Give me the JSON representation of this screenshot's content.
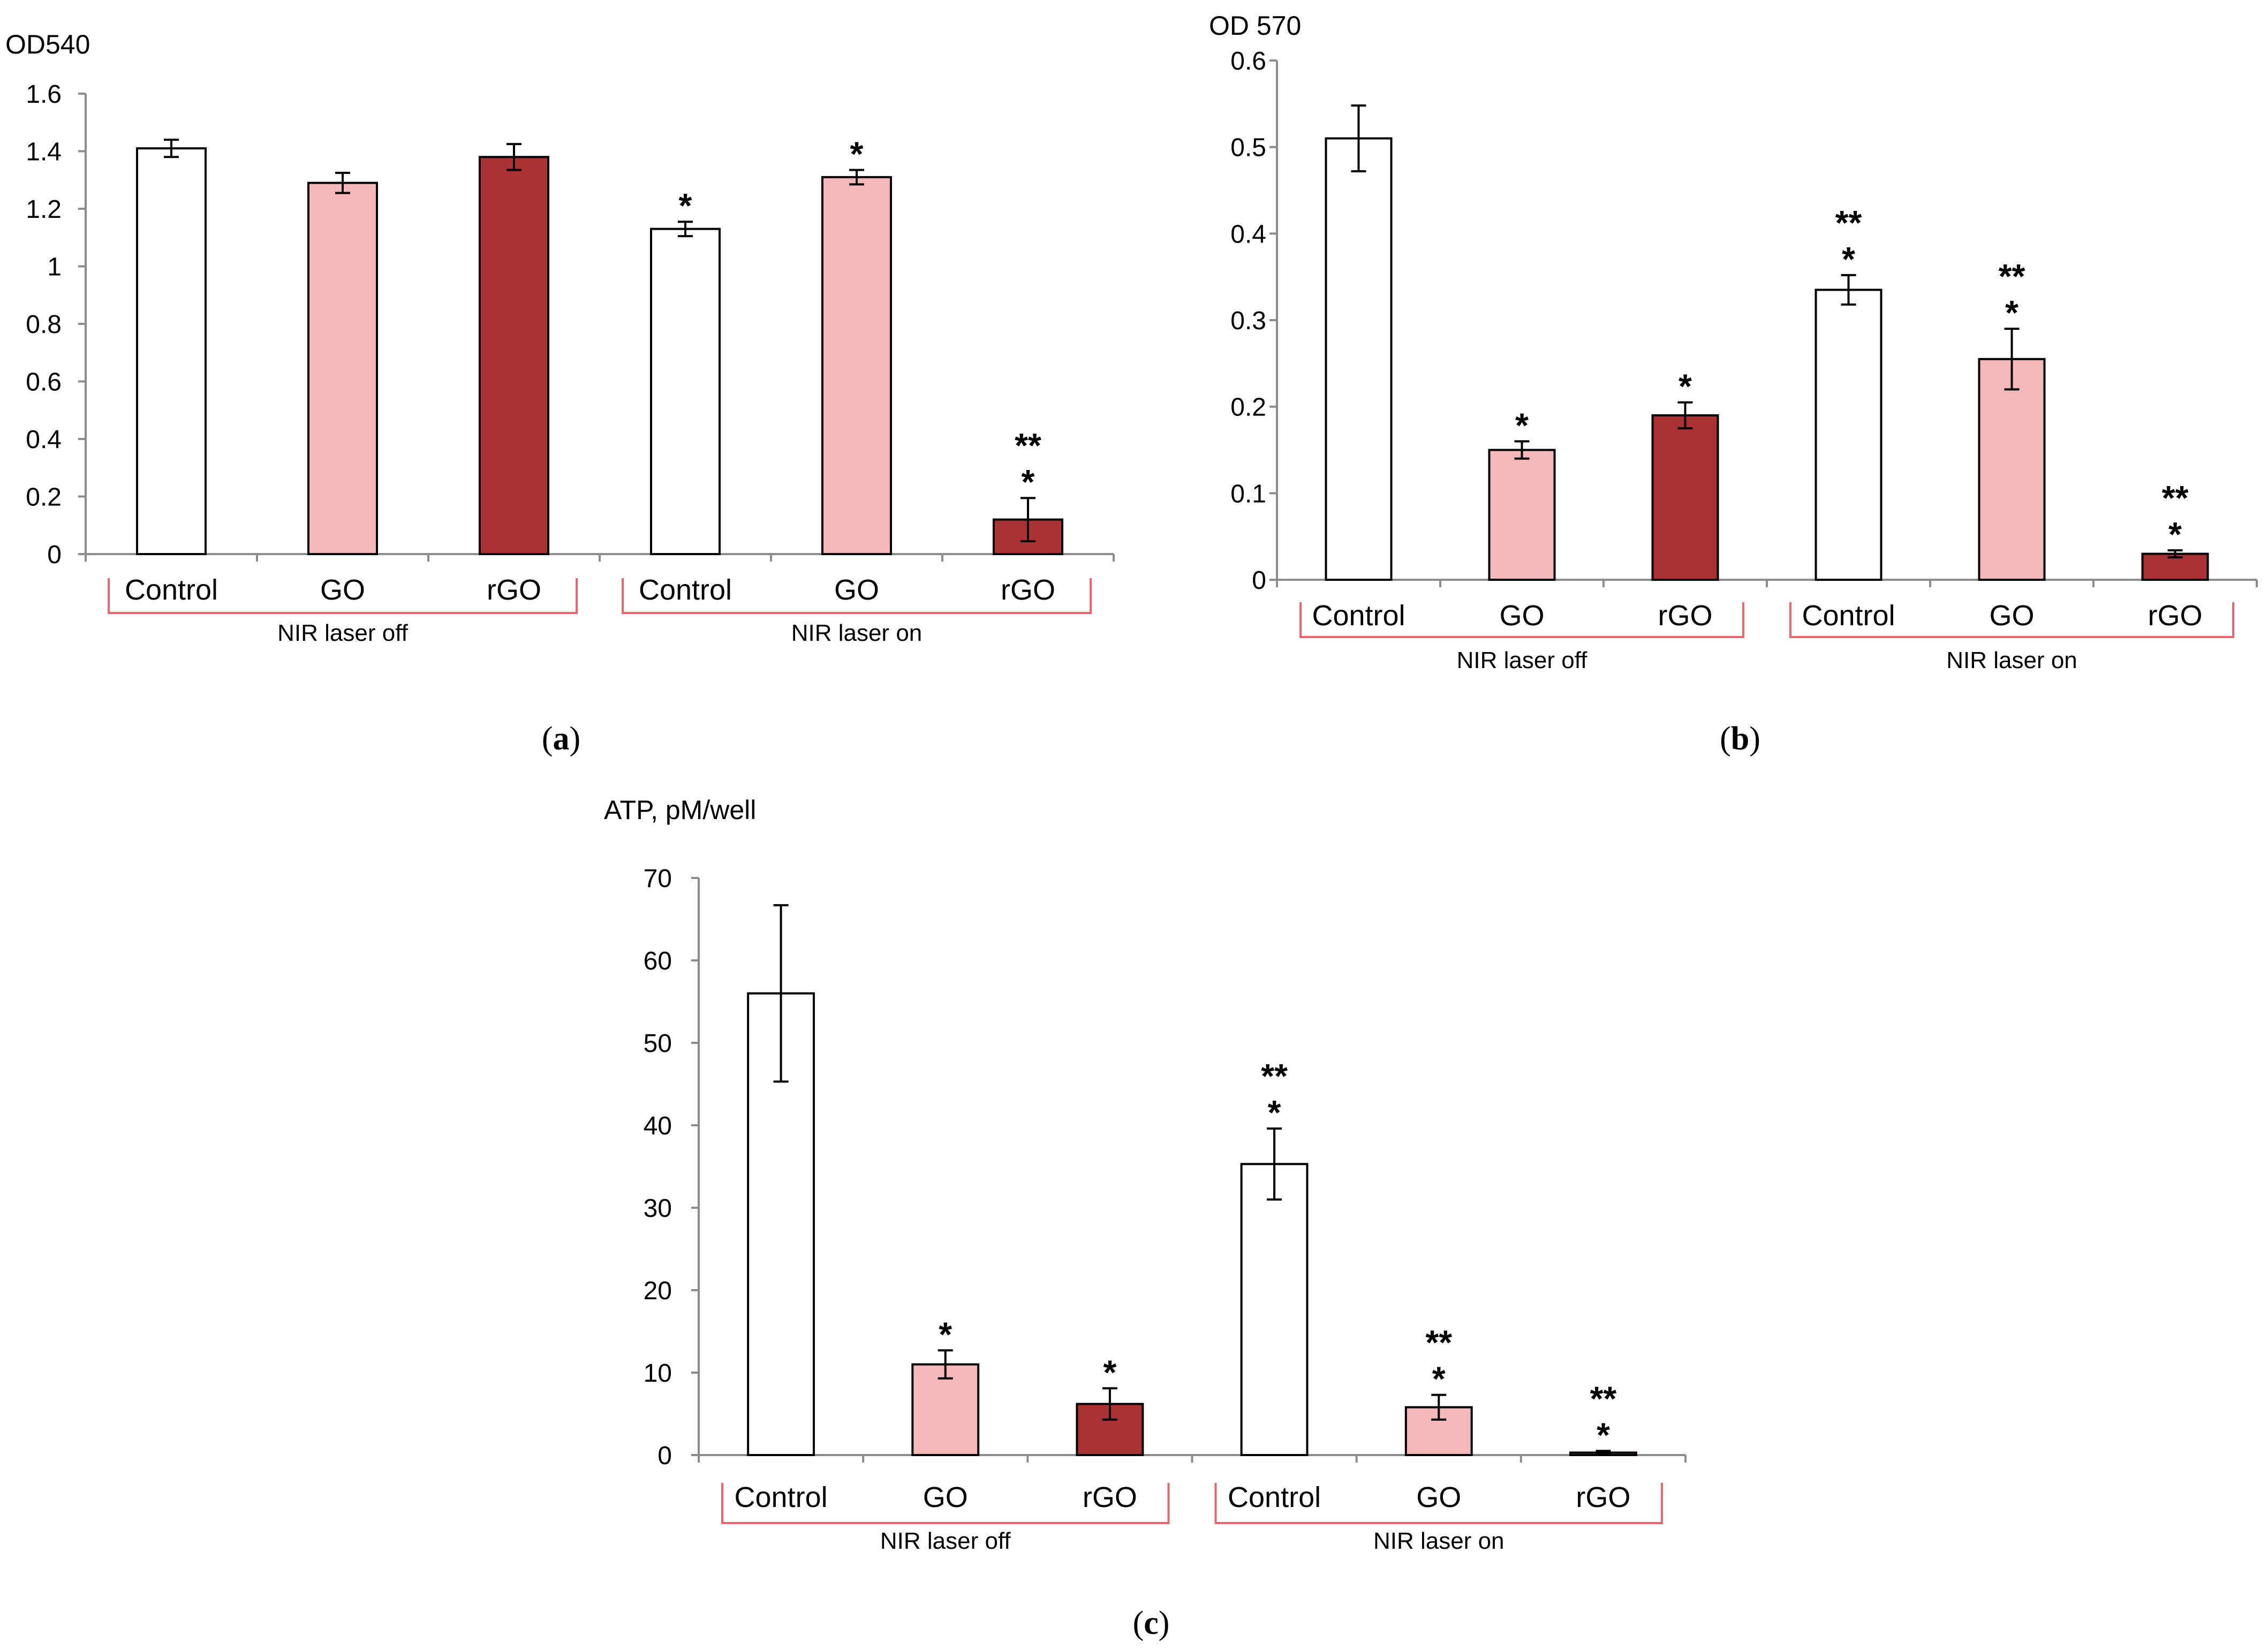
{
  "chart_data": [
    {
      "panel": "a",
      "type": "bar",
      "ylabel": "OD540",
      "ylim": [
        0,
        1.6
      ],
      "yticks": [
        "0",
        "0.2",
        "0.4",
        "0.6",
        "0.8",
        "1",
        "1.2",
        "1.4",
        "1.6"
      ],
      "categories": [
        "Control",
        "GO",
        "rGO",
        "Control",
        "GO",
        "rGO"
      ],
      "groups": [
        "NIR laser off",
        "NIR laser on"
      ],
      "values": [
        1.41,
        1.29,
        1.38,
        1.13,
        1.31,
        0.12
      ],
      "errors": [
        0.03,
        0.035,
        0.045,
        0.025,
        0.025,
        0.075
      ],
      "significance": [
        "",
        "",
        "",
        "*",
        "*",
        "**\n*"
      ],
      "colors": [
        "#ffffff",
        "#f4b8b8",
        "#ab3232",
        "#ffffff",
        "#f4b8b8",
        "#ab3232"
      ]
    },
    {
      "panel": "b",
      "type": "bar",
      "ylabel": "OD 570",
      "ylim": [
        0,
        0.6
      ],
      "yticks": [
        "0",
        "0.1",
        "0.2",
        "0.3",
        "0.4",
        "0.5",
        "0.6"
      ],
      "categories": [
        "Control",
        "GO",
        "rGO",
        "Control",
        "GO",
        "rGO"
      ],
      "groups": [
        "NIR laser off",
        "NIR laser on"
      ],
      "values": [
        0.51,
        0.15,
        0.19,
        0.335,
        0.255,
        0.03
      ],
      "errors": [
        0.038,
        0.01,
        0.015,
        0.017,
        0.035,
        0.004
      ],
      "significance": [
        "",
        "*",
        "*",
        "**\n*",
        "**\n*",
        "**\n*"
      ],
      "colors": [
        "#ffffff",
        "#f4b8b8",
        "#ab3232",
        "#ffffff",
        "#f4b8b8",
        "#ab3232"
      ]
    },
    {
      "panel": "c",
      "type": "bar",
      "ylabel": "ATP, pM/well",
      "ylim": [
        0,
        70
      ],
      "yticks": [
        "0",
        "10",
        "20",
        "30",
        "40",
        "50",
        "60",
        "70"
      ],
      "categories": [
        "Control",
        "GO",
        "rGO",
        "Control",
        "GO",
        "rGO"
      ],
      "groups": [
        "NIR laser off",
        "NIR laser on"
      ],
      "values": [
        56,
        11,
        6.2,
        35.3,
        5.8,
        0.3
      ],
      "errors": [
        10.7,
        1.7,
        1.9,
        4.3,
        1.5,
        0.2
      ],
      "significance": [
        "",
        "*",
        "*",
        "**\n*",
        "**\n*",
        "**\n*"
      ],
      "colors": [
        "#ffffff",
        "#f4b8b8",
        "#ab3232",
        "#ffffff",
        "#f4b8b8",
        "#ab3232"
      ]
    }
  ],
  "panel_labels": [
    {
      "open": "(",
      "letter": "a",
      "close": ")"
    },
    {
      "open": "(",
      "letter": "b",
      "close": ")"
    },
    {
      "open": "(",
      "letter": "c",
      "close": ")"
    }
  ]
}
